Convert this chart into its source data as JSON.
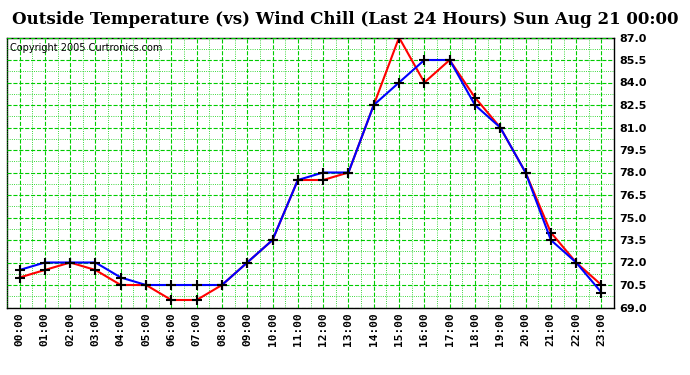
{
  "title": "Outside Temperature (vs) Wind Chill (Last 24 Hours) Sun Aug 21 00:00",
  "copyright": "Copyright 2005 Curtronics.com",
  "hours": [
    0,
    1,
    2,
    3,
    4,
    5,
    6,
    7,
    8,
    9,
    10,
    11,
    12,
    13,
    14,
    15,
    16,
    17,
    18,
    19,
    20,
    21,
    22,
    23
  ],
  "hour_labels": [
    "00:00",
    "01:00",
    "02:00",
    "03:00",
    "04:00",
    "05:00",
    "06:00",
    "07:00",
    "08:00",
    "09:00",
    "10:00",
    "11:00",
    "12:00",
    "13:00",
    "14:00",
    "15:00",
    "16:00",
    "17:00",
    "18:00",
    "19:00",
    "20:00",
    "21:00",
    "22:00",
    "23:00"
  ],
  "outside_temp": [
    71.0,
    71.5,
    72.0,
    71.5,
    70.5,
    70.5,
    69.5,
    69.5,
    70.5,
    72.0,
    73.5,
    77.5,
    77.5,
    78.0,
    82.5,
    87.0,
    84.0,
    85.5,
    83.0,
    81.0,
    78.0,
    74.0,
    72.0,
    70.5
  ],
  "wind_chill": [
    71.5,
    72.0,
    72.0,
    72.0,
    71.0,
    70.5,
    70.5,
    70.5,
    70.5,
    72.0,
    73.5,
    77.5,
    78.0,
    78.0,
    82.5,
    84.0,
    85.5,
    85.5,
    82.5,
    81.0,
    78.0,
    73.5,
    72.0,
    70.0
  ],
  "ylim_min": 69.0,
  "ylim_max": 87.0,
  "yticks": [
    69.0,
    70.5,
    72.0,
    73.5,
    75.0,
    76.5,
    78.0,
    79.5,
    81.0,
    82.5,
    84.0,
    85.5,
    87.0
  ],
  "outside_color": "#ff0000",
  "wind_chill_color": "#0000ff",
  "grid_major_color": "#00cc00",
  "grid_minor_color": "#00cc00",
  "bg_color": "#ffffff",
  "plot_bg_color": "#ffffff",
  "title_fontsize": 12,
  "copyright_fontsize": 7,
  "tick_fontsize": 8
}
